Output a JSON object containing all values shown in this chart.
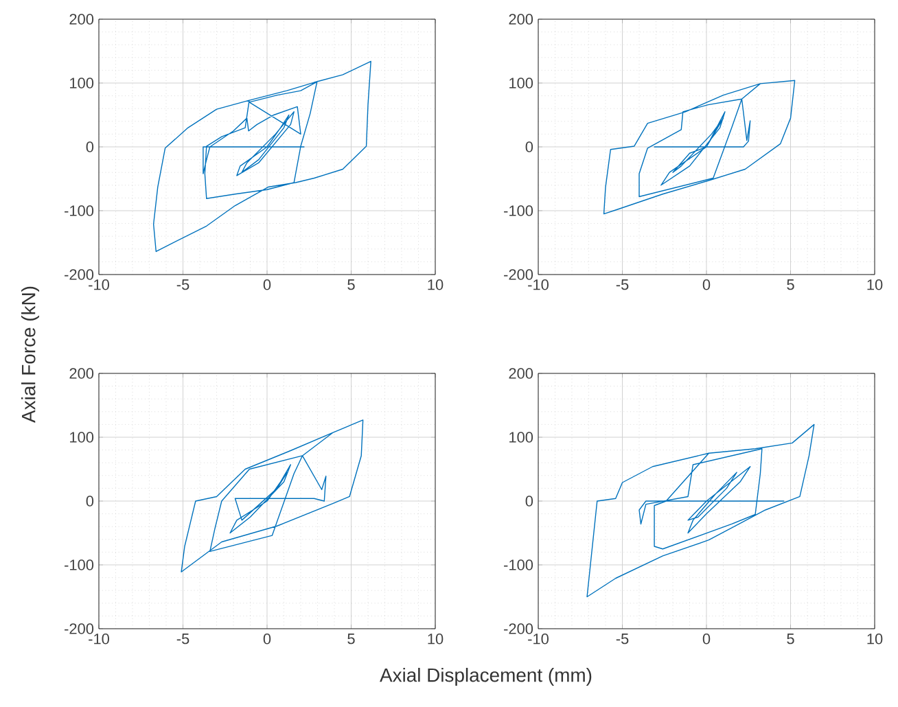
{
  "chart_data": [
    {
      "type": "line",
      "ylabel": "Axial Force (kN)",
      "xlim": [
        -10,
        10
      ],
      "ylim": [
        -200,
        200
      ],
      "xticks": [
        -10,
        -5,
        0,
        5,
        10
      ],
      "yticks": [
        -200,
        -100,
        0,
        100,
        200
      ],
      "grid": true,
      "series": [
        {
          "color": "#0072bd",
          "x": [
            0,
            0.8,
            1.3,
            1.0,
            -0.5,
            -1.5,
            -1.2,
            0.5,
            1.6,
            1.4,
            -0.5,
            -1.8,
            -1.6,
            0,
            2.2,
            -3.8,
            -3.8,
            -3.6,
            -3.4,
            -2,
            -1.2,
            -1.1,
            -0.6,
            0.4,
            1.8,
            2.0,
            -1.06,
            0.6,
            2,
            2.97,
            2.56,
            2,
            1.6,
            0,
            -1.9,
            -3.6,
            -3.7,
            -3.6,
            -2.7,
            -1.3,
            -1.06,
            1.17,
            2.8,
            4.5,
            6.17,
            6.0,
            5.9,
            4.5,
            2.8,
            1.7,
            0.06,
            -1.9,
            -3.6,
            -5.8,
            -6.6,
            -6.75,
            -6.5,
            -6.06,
            -4.7,
            -3,
            -1.06
          ],
          "values": [
            0,
            30,
            50,
            30,
            -20,
            -40,
            -25,
            20,
            55,
            35,
            -25,
            -45,
            -30,
            0,
            0,
            0,
            -42,
            -20,
            0,
            25,
            45,
            25,
            35,
            50,
            63,
            20,
            70,
            81,
            88,
            102,
            52,
            1,
            -56,
            -67,
            -74,
            -81,
            -42,
            1,
            16,
            30,
            73,
            88,
            101,
            113,
            134,
            66,
            1,
            -35,
            -49,
            -56,
            -63,
            -92,
            -124,
            -153,
            -164,
            -121,
            -63,
            -2,
            30,
            59,
            73
          ]
        }
      ]
    },
    {
      "type": "line",
      "xlim": [
        -10,
        10
      ],
      "ylim": [
        -200,
        200
      ],
      "xticks": [
        -10,
        -5,
        0,
        5,
        10
      ],
      "yticks": [
        -200,
        -100,
        0,
        100,
        200
      ],
      "grid": true,
      "series": [
        {
          "color": "#0072bd",
          "x": [
            0,
            0.6,
            1.1,
            0.8,
            -1.0,
            -2.7,
            -2.2,
            0,
            1.0,
            0.3,
            -1.5,
            -2.0,
            -1.0,
            0,
            2.2,
            -3.1,
            2.2,
            2.5,
            2.6,
            2.4,
            2.1,
            1.5,
            0.4,
            -4,
            -4,
            -3.5,
            -1.5,
            -1.4,
            0.1,
            2.1,
            3.2,
            5.25,
            5.0,
            4.4,
            2.3,
            0.1,
            -2.6,
            -5.4,
            -6.1,
            -6.0,
            -5.7,
            -4.3,
            -3.5,
            -1.25,
            1,
            3.2
          ],
          "values": [
            0,
            30,
            55,
            30,
            -30,
            -60,
            -40,
            0,
            45,
            20,
            -30,
            -40,
            -10,
            0,
            0,
            0,
            0,
            9,
            41,
            10,
            75,
            30,
            -49,
            -78,
            -42,
            -2,
            27,
            55,
            66,
            75,
            99,
            104,
            45,
            5,
            -35,
            -53,
            -74,
            -99,
            -105,
            -63,
            -4,
            1,
            37,
            55,
            81,
            99
          ]
        }
      ]
    },
    {
      "type": "line",
      "xlabel": "Axial Displacement (mm)",
      "xlim": [
        -10,
        10
      ],
      "ylim": [
        -200,
        200
      ],
      "xticks": [
        -10,
        -5,
        0,
        5,
        10
      ],
      "yticks": [
        -200,
        -100,
        0,
        100,
        200
      ],
      "grid": true,
      "series": [
        {
          "color": "#0072bd",
          "x": [
            0,
            0.8,
            1.4,
            1.0,
            -1.0,
            -2.2,
            -1.8,
            0,
            1.2,
            0.6,
            -1.5,
            -1.9,
            2.8,
            3.4,
            3.5,
            3.25,
            2.1,
            1.6,
            0.3,
            -3.4,
            -3.1,
            -2.7,
            -1.05,
            2.1,
            3.9,
            5.7,
            5.6,
            4.9,
            3.9,
            0.6,
            -2.7,
            -5.1,
            -4.9,
            -4.25,
            -3,
            -1.3,
            1.4,
            3.9
          ],
          "values": [
            0,
            30,
            57,
            30,
            -25,
            -50,
            -30,
            0,
            45,
            20,
            -30,
            4,
            4,
            0,
            39,
            18,
            71,
            43,
            -54,
            -79,
            -43,
            0,
            50,
            71,
            107,
            127,
            71,
            7,
            -4,
            -39,
            -64,
            -111,
            -71,
            0,
            7,
            50,
            79,
            107
          ]
        }
      ]
    },
    {
      "type": "line",
      "xlim": [
        -10,
        10
      ],
      "ylim": [
        -200,
        200
      ],
      "xticks": [
        -10,
        -5,
        0,
        5,
        10
      ],
      "yticks": [
        -200,
        -100,
        0,
        100,
        200
      ],
      "grid": true,
      "series": [
        {
          "color": "#0072bd",
          "x": [
            0,
            1.2,
            2.6,
            2.0,
            0,
            -1.1,
            -0.8,
            0.5,
            1.8,
            1.2,
            -0.5,
            -1.1,
            0,
            4.6,
            -3.6,
            -4,
            -3.9,
            -3.6,
            -1.1,
            -0.8,
            3.3,
            3.2,
            2.9,
            1.5,
            -2.6,
            -3.1,
            -3.1,
            -2.4,
            0.14,
            2.9,
            5.1,
            6.4,
            6.1,
            5.55,
            3.5,
            0.14,
            -2.6,
            -5.4,
            -7.1,
            -6.9,
            -6.5,
            -5.4,
            -5,
            -3.2,
            0.14
          ],
          "values": [
            0,
            25,
            54,
            30,
            -20,
            -50,
            -30,
            10,
            45,
            20,
            -25,
            -30,
            0,
            0,
            0,
            -14,
            -36,
            -5,
            7,
            57,
            82,
            43,
            -21,
            -36,
            -75,
            -71,
            -7,
            0,
            75,
            82,
            91,
            120,
            71,
            7,
            -14,
            -61,
            -86,
            -121,
            -150,
            -100,
            0,
            4,
            29,
            54,
            75
          ]
        }
      ]
    }
  ]
}
